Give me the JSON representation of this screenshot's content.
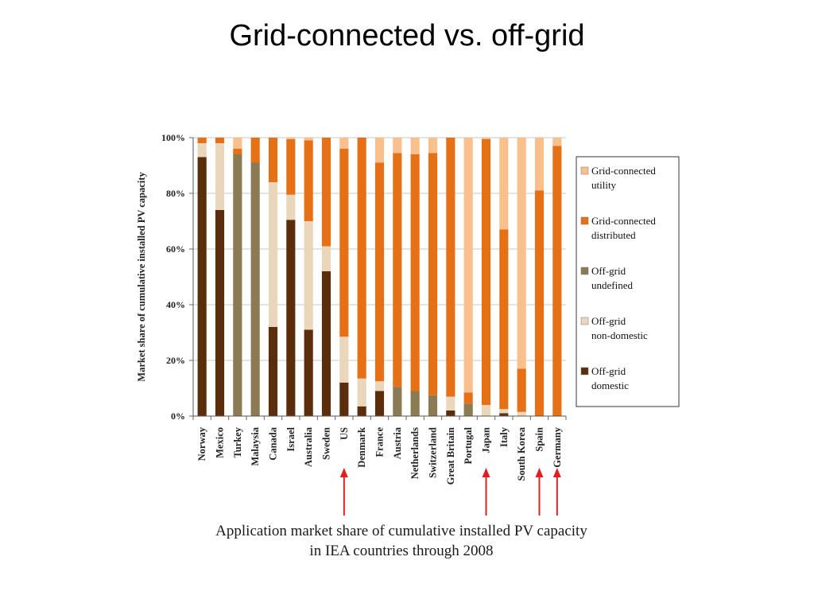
{
  "slide": {
    "title": "Grid-connected vs. off-grid",
    "caption_line1": "Application market share of cumulative installed PV capacity",
    "caption_line2": "in IEA countries through 2008"
  },
  "chart_data": {
    "type": "bar",
    "stacked": true,
    "ylabel": "Market share of cumulative installed PV capacity",
    "xlabel": "",
    "ylim": [
      0,
      100
    ],
    "yticks": [
      "0%",
      "20%",
      "40%",
      "60%",
      "80%",
      "100%"
    ],
    "grid": true,
    "legend_position": "right",
    "categories": [
      "Norway",
      "Mexico",
      "Turkey",
      "Malaysia",
      "Canada",
      "Israel",
      "Australia",
      "Sweden",
      "US",
      "Denmark",
      "France",
      "Austria",
      "Netherlands",
      "Switzerland",
      "Great Britain",
      "Portugal",
      "Japan",
      "Italy",
      "South Korea",
      "Spain",
      "Germany"
    ],
    "highlighted_categories": [
      "US",
      "Japan",
      "Spain",
      "Germany"
    ],
    "highlight_color": "#e02020",
    "series": [
      {
        "name": "Off-grid domestic",
        "color": "#5a2e0c",
        "values": [
          93,
          74,
          0,
          0,
          32,
          70.5,
          31,
          52,
          12,
          3.5,
          9,
          0,
          0,
          0,
          2,
          0,
          0,
          1,
          0,
          0,
          0
        ]
      },
      {
        "name": "Off-grid non-domestic",
        "color": "#e9d6bb",
        "values": [
          5,
          24,
          0,
          0,
          52,
          9,
          39,
          9,
          16.5,
          10,
          3.5,
          0,
          0,
          0,
          5,
          0,
          4,
          1.5,
          1.5,
          0,
          0
        ]
      },
      {
        "name": "Off-grid undefined",
        "color": "#8c7a52",
        "values": [
          0,
          0,
          94,
          91,
          0,
          0,
          0,
          0,
          0,
          0,
          0,
          10.5,
          9,
          7.5,
          0,
          4.5,
          0,
          0,
          0,
          0,
          0
        ]
      },
      {
        "name": "Grid-connected distributed",
        "color": "#e67016",
        "values": [
          2,
          2,
          2,
          9,
          16,
          20,
          29,
          39,
          67.5,
          86.5,
          78.5,
          84,
          85,
          87,
          93,
          4,
          95.5,
          64.5,
          15.5,
          81,
          97
        ]
      },
      {
        "name": "Grid-connected utility",
        "color": "#f9c08d",
        "values": [
          0,
          0,
          4,
          0,
          0,
          0.5,
          1,
          0,
          4,
          0,
          9,
          5.5,
          6,
          5.5,
          0,
          91.5,
          0.5,
          33,
          83,
          19,
          3
        ]
      }
    ],
    "legend": [
      {
        "line1": "Grid-connected",
        "line2": "utility",
        "color": "#f9c08d"
      },
      {
        "line1": "Grid-connected",
        "line2": "distributed",
        "color": "#e67016"
      },
      {
        "line1": "Off-grid",
        "line2": "undefined",
        "color": "#8c7a52"
      },
      {
        "line1": "Off-grid",
        "line2": "non-domestic",
        "color": "#e9d6bb"
      },
      {
        "line1": "Off-grid",
        "line2": "domestic",
        "color": "#5a2e0c"
      }
    ]
  }
}
